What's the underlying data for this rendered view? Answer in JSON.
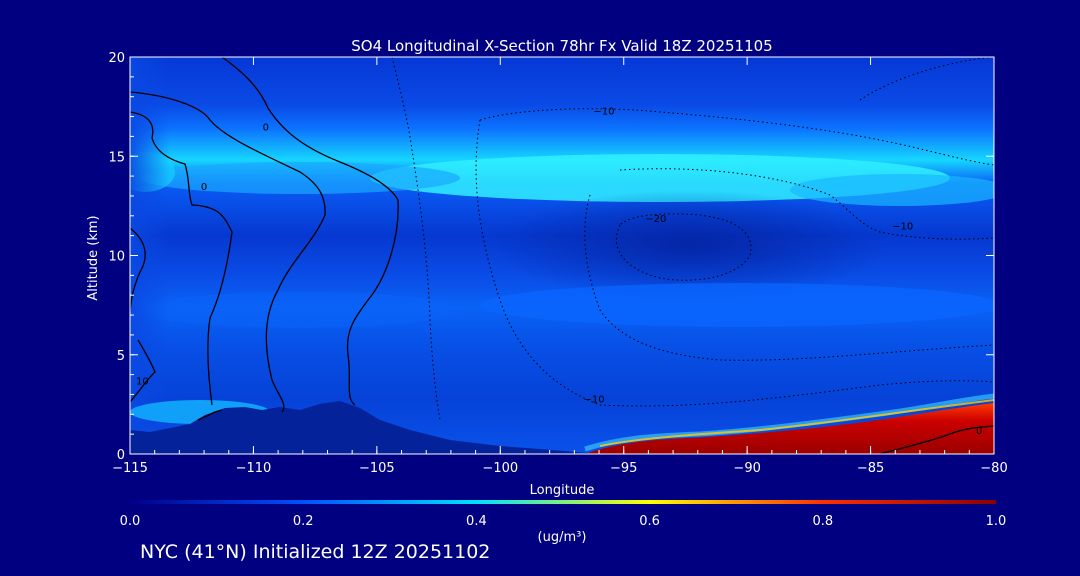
{
  "chart_data": {
    "type": "heatmap",
    "title": "SO4 Longitudinal X-Section 78hr  Fx Valid 18Z 20251105",
    "xlabel": "Longitude",
    "ylabel": "Altitude (km)",
    "xlim": [
      -115,
      -80
    ],
    "ylim": [
      0,
      20
    ],
    "x_ticks": [
      -115,
      -110,
      -105,
      -100,
      -95,
      -90,
      -85,
      -80
    ],
    "x_tick_labels": [
      "−115",
      "−110",
      "−105",
      "−100",
      "−95",
      "−90",
      "−85",
      "−80"
    ],
    "y_ticks": [
      0,
      5,
      10,
      15,
      20
    ],
    "y_tick_labels": [
      "0",
      "5",
      "10",
      "15",
      "20"
    ],
    "colorbar": {
      "unit_label": "(ug/m³)",
      "range": [
        0.0,
        1.0
      ],
      "ticks": [
        "0.0",
        "0.2",
        "0.4",
        "0.6",
        "0.8",
        "1.0"
      ]
    },
    "contour_labels": [
      {
        "text": "0",
        "lon": -109.5,
        "alt": 16.5
      },
      {
        "text": "0",
        "lon": -112.0,
        "alt": 13.5
      },
      {
        "text": "−10",
        "lon": -95.8,
        "alt": 17.3
      },
      {
        "text": "−20",
        "lon": -93.7,
        "alt": 11.9
      },
      {
        "text": "−10",
        "lon": -83.7,
        "alt": 11.5
      },
      {
        "text": "−10",
        "lon": -96.2,
        "alt": 2.8
      },
      {
        "text": "10",
        "lon": -114.5,
        "alt": 3.7
      },
      {
        "text": "0",
        "lon": -80.6,
        "alt": 1.2
      }
    ],
    "fields": {
      "background_level": 0.14,
      "features": [
        {
          "name": "upper sulfate layer",
          "lon_range": [
            -115,
            -80
          ],
          "alt_center": 13.9,
          "peak": 0.36
        },
        {
          "name": "mid layer",
          "lon_range": [
            -115,
            -80
          ],
          "alt_center": 7.4,
          "peak": 0.21
        },
        {
          "name": "boundary layer plume",
          "lon_range": [
            -96,
            -80
          ],
          "alt_range": [
            0,
            2.2
          ],
          "peak": 1.0
        },
        {
          "name": "terrain",
          "lon_range": [
            -115,
            -96
          ],
          "alt_max": 1.8
        }
      ]
    },
    "grid": false
  },
  "footer": {
    "text": "NYC (41°N) Initialized 12Z 20251102"
  }
}
